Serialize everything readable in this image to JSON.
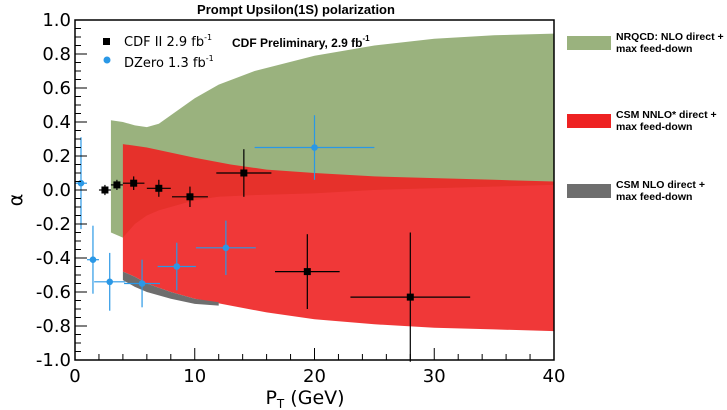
{
  "chart_data": {
    "type": "scatter",
    "title": "Prompt Upsilon(1S) polarization",
    "xlabel": "P_T  (GeV)",
    "ylabel": "α",
    "xlim": [
      0,
      40
    ],
    "ylim": [
      -1.0,
      1.0
    ],
    "x_ticks": [
      "0",
      "10",
      "20",
      "30",
      "40"
    ],
    "y_ticks": [
      "1.0",
      "0.8",
      "0.6",
      "0.4",
      "0.2",
      "0.0",
      "-0.2",
      "-0.4",
      "-0.6",
      "-0.8",
      "-1.0"
    ],
    "y_tick_values": [
      1.0,
      0.8,
      0.6,
      0.4,
      0.2,
      0.0,
      -0.2,
      -0.4,
      -0.6,
      -0.8,
      -1.0
    ],
    "preliminary_note": "CDF Preliminary, 2.9 fb",
    "preliminary_note_sup": "-1",
    "series": [
      {
        "name": "CDF II 2.9 fb",
        "name_sup": "-1",
        "marker": "square",
        "color": "#000000",
        "points": [
          {
            "x": 2.5,
            "y": 0.0,
            "xerr": 0.5,
            "yerr": 0.03
          },
          {
            "x": 3.5,
            "y": 0.03,
            "xerr": 0.5,
            "yerr": 0.03
          },
          {
            "x": 4.9,
            "y": 0.04,
            "xerr": 0.9,
            "yerr": 0.04
          },
          {
            "x": 7.0,
            "y": 0.01,
            "xerr": 1.0,
            "yerr": 0.05
          },
          {
            "x": 9.6,
            "y": -0.04,
            "xerr": 1.5,
            "yerr": 0.06
          },
          {
            "x": 14.1,
            "y": 0.1,
            "xerr": 2.3,
            "yerr": 0.14
          },
          {
            "x": 19.4,
            "y": -0.48,
            "xerr": 2.7,
            "yerr": 0.22
          },
          {
            "x": 28.0,
            "y": -0.63,
            "xerr": 5.0,
            "yerr": 0.38
          }
        ]
      },
      {
        "name": "DZero 1.3 fb",
        "name_sup": "-1",
        "marker": "circle",
        "color": "#2a98e6",
        "points": [
          {
            "x": 0.5,
            "y": 0.04,
            "xerr": 0.5,
            "yerr": 0.27
          },
          {
            "x": 1.5,
            "y": -0.41,
            "xerr": 0.5,
            "yerr": 0.2
          },
          {
            "x": 2.9,
            "y": -0.54,
            "xerr": 1.3,
            "yerr": 0.17
          },
          {
            "x": 5.6,
            "y": -0.55,
            "xerr": 1.5,
            "yerr": 0.14
          },
          {
            "x": 8.5,
            "y": -0.45,
            "xerr": 1.6,
            "yerr": 0.14
          },
          {
            "x": 12.6,
            "y": -0.34,
            "xerr": 2.5,
            "yerr": 0.16
          },
          {
            "x": 20.0,
            "y": 0.25,
            "xerr": 5.0,
            "yerr": 0.19
          }
        ]
      }
    ],
    "bands": [
      {
        "name": "NRQCD: NLO direct + max feed-down",
        "label_lines": [
          "NRQCD: NLO direct +",
          "max feed-down"
        ],
        "color": "#9ab27e",
        "x": [
          3,
          4,
          5,
          6,
          7,
          8,
          9,
          10,
          12,
          15,
          20,
          25,
          30,
          35,
          40
        ],
        "upper": [
          0.41,
          0.4,
          0.38,
          0.37,
          0.39,
          0.44,
          0.49,
          0.54,
          0.62,
          0.7,
          0.79,
          0.85,
          0.89,
          0.91,
          0.92
        ],
        "lower": [
          -0.25,
          -0.28,
          -0.2,
          -0.15,
          -0.12,
          -0.1,
          -0.08,
          -0.06,
          -0.04,
          -0.03,
          -0.02,
          0.0,
          0.01,
          0.02,
          0.03
        ]
      },
      {
        "name": "CSM NNLO* direct + max feed-down",
        "label_lines": [
          "CSM NNLO* direct +",
          "max feed-down"
        ],
        "color": "#ee2222",
        "x": [
          4,
          5,
          6,
          8,
          10,
          13,
          16,
          20,
          25,
          30,
          35,
          40
        ],
        "upper": [
          0.27,
          0.26,
          0.25,
          0.22,
          0.19,
          0.15,
          0.12,
          0.1,
          0.08,
          0.07,
          0.06,
          0.05
        ],
        "lower": [
          -0.48,
          -0.51,
          -0.55,
          -0.6,
          -0.64,
          -0.68,
          -0.72,
          -0.76,
          -0.79,
          -0.81,
          -0.82,
          -0.83
        ]
      },
      {
        "name": "CSM NLO direct + max feed-down",
        "label_lines": [
          "CSM NLO direct +",
          "max feed-down"
        ],
        "color": "#6e6e6e",
        "x": [
          4,
          5,
          6,
          8,
          10,
          12
        ],
        "upper": [
          -0.48,
          -0.51,
          -0.55,
          -0.6,
          -0.64,
          -0.66
        ],
        "lower": [
          -0.53,
          -0.57,
          -0.6,
          -0.64,
          -0.67,
          -0.68
        ]
      }
    ],
    "legend_position": "top-left (data markers); right side outside plot (theory bands)"
  }
}
